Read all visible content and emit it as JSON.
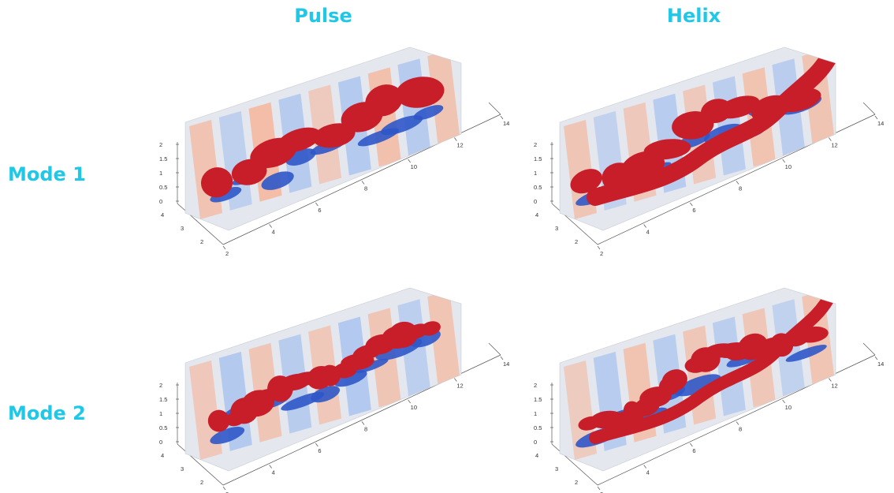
{
  "columns": [
    "Pulse",
    "Helix"
  ],
  "rows": [
    "Mode 1",
    "Mode 2"
  ],
  "axes": {
    "z_ticks": [
      "2",
      "1.5",
      "1",
      "0.5",
      "0"
    ],
    "y_ticks": [
      "4",
      "3",
      "2"
    ],
    "x_ticks": [
      "2",
      "4",
      "6",
      "8",
      "10",
      "12",
      "14"
    ]
  },
  "colors": {
    "title": "#1ec8e6",
    "positive": "#c81e2a",
    "negative": "#2f56c8",
    "light_pos": "#f5b59a",
    "light_neg": "#a9c3ee"
  },
  "panels": [
    {
      "id": "pulse-mode1",
      "column": "Pulse",
      "row": "Mode 1"
    },
    {
      "id": "helix-mode1",
      "column": "Helix",
      "row": "Mode 1"
    },
    {
      "id": "pulse-mode2",
      "column": "Pulse",
      "row": "Mode 2"
    },
    {
      "id": "helix-mode2",
      "column": "Helix",
      "row": "Mode 2"
    }
  ]
}
